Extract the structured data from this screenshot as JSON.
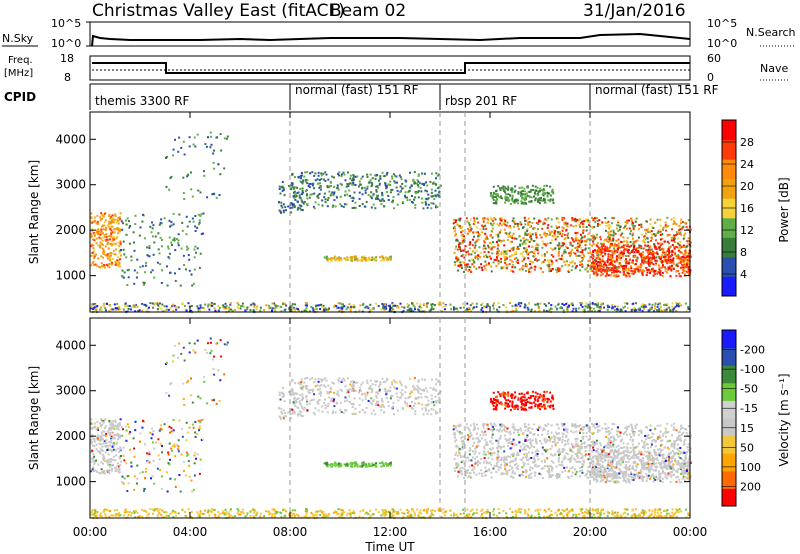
{
  "header": {
    "station": "Christmas Valley East (fitACF)",
    "beam": "Beam 02",
    "date": "31/Jan/2016"
  },
  "top_panels": {
    "nsky_label": "N.Sky",
    "nsky_scale": [
      "10^5",
      "10^0"
    ],
    "nsearch_label": "N.Search",
    "nsearch_scale": [
      "10^5",
      "10^0"
    ],
    "freq_label": "Freq.",
    "freq_unit": "[MHz]",
    "freq_scale": [
      "18",
      "8"
    ],
    "nave_label": "Nave",
    "nave_scale": [
      "60",
      "0"
    ],
    "cpid_label": "CPID",
    "cpid_segments": [
      "themis 3300 RF",
      "normal (fast) 151 RF",
      "rbsp 201 RF",
      "normal (fast) 151 RF"
    ]
  },
  "colors": {
    "power_scale": [
      "#1a1aff",
      "#2a4fae",
      "#3a7d3a",
      "#5fae48",
      "#f6d23a",
      "#f2a20f",
      "#ff8a0a",
      "#ff3b0a",
      "#ff0000"
    ],
    "velocity_scale": [
      "#ff0000",
      "#ff6a00",
      "#ffa500",
      "#f3c73a",
      "#c8c8c8",
      "#d0d0d0",
      "#6ccb3a",
      "#3a8a3a",
      "#2a4fae",
      "#1a1aff"
    ]
  },
  "chart_data": [
    {
      "type": "heatmap",
      "name": "Power panel",
      "xlabel": "Time UT",
      "ylabel": "Slant Range [km]",
      "xlim": [
        0,
        24
      ],
      "ylim": [
        200,
        4600
      ],
      "x_ticks": [
        "00:00",
        "04:00",
        "08:00",
        "12:00",
        "16:00",
        "20:00",
        "00:00"
      ],
      "y_ticks": [
        1000,
        2000,
        3000,
        4000
      ],
      "colorbar_label": "Power [dB]",
      "colorbar_ticks": [
        4,
        8,
        12,
        16,
        20,
        24,
        28
      ],
      "cpid_boundaries_hours": [
        8.0,
        14.0,
        15.0,
        20.0
      ]
    },
    {
      "type": "heatmap",
      "name": "Velocity panel",
      "xlabel": "Time UT",
      "ylabel": "Slant Range [km]",
      "xlim": [
        0,
        24
      ],
      "ylim": [
        200,
        4600
      ],
      "x_ticks": [
        "00:00",
        "04:00",
        "08:00",
        "12:00",
        "16:00",
        "20:00",
        "00:00"
      ],
      "y_ticks": [
        1000,
        2000,
        3000,
        4000
      ],
      "colorbar_label": "Velocity [m s⁻¹]",
      "colorbar_ticks": [
        200,
        100,
        50,
        15,
        -15,
        -50,
        -100,
        -200
      ],
      "cpid_boundaries_hours": [
        8.0,
        14.0,
        15.0,
        20.0
      ]
    }
  ]
}
